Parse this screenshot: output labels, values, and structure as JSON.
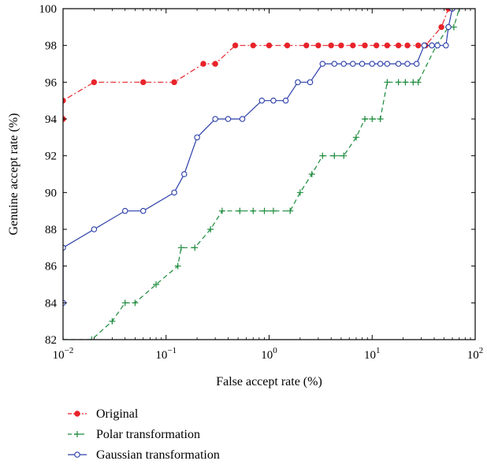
{
  "chart_data": {
    "type": "line",
    "title": "",
    "xlabel": "False accept rate (%)",
    "ylabel": "Genuine accept rate (%)",
    "xscale": "log",
    "xlim": [
      0.01,
      100
    ],
    "ylim": [
      82,
      100
    ],
    "x_ticks": [
      {
        "value": 0.01,
        "base": "10",
        "exp": "−2"
      },
      {
        "value": 0.1,
        "base": "10",
        "exp": "−1"
      },
      {
        "value": 1,
        "base": "10",
        "exp": "0"
      },
      {
        "value": 10,
        "base": "10",
        "exp": "1"
      },
      {
        "value": 100,
        "base": "10",
        "exp": "2"
      }
    ],
    "y_ticks": [
      82,
      84,
      86,
      88,
      90,
      92,
      94,
      96,
      98,
      100
    ],
    "grid": false,
    "legend_position": "below plot, left",
    "series": [
      {
        "name": "Original",
        "color": "#e8232a",
        "line_style": "dash-dot",
        "marker": "filled-circle",
        "x": [
          0.01,
          0.01,
          0.02,
          0.06,
          0.12,
          0.23,
          0.3,
          0.47,
          0.7,
          1.0,
          1.5,
          2.3,
          3.0,
          4.0,
          5.0,
          6.5,
          8.5,
          11.0,
          14.0,
          18.0,
          22.0,
          28.0,
          33.0,
          47.0,
          55.0
        ],
        "y": [
          94,
          95,
          96,
          96,
          96,
          97,
          97,
          98,
          98,
          98,
          98,
          98,
          98,
          98,
          98,
          98,
          98,
          98,
          98,
          98,
          98,
          98,
          98,
          99,
          100
        ]
      },
      {
        "name": "Polar transformation",
        "color": "#1a8a3a",
        "line_style": "dashed",
        "marker": "plus",
        "x": [
          0.01,
          0.019,
          0.03,
          0.04,
          0.05,
          0.08,
          0.13,
          0.14,
          0.19,
          0.27,
          0.35,
          0.52,
          0.7,
          0.9,
          1.1,
          1.6,
          2.0,
          2.6,
          3.3,
          4.3,
          5.3,
          7.0,
          8.5,
          10.0,
          12.0,
          14.0,
          18.0,
          21.0,
          25.0,
          28.0,
          42.0,
          55.0,
          62.0,
          70.0
        ],
        "y": [
          82,
          82,
          83,
          84,
          84,
          85,
          86,
          87,
          87,
          88,
          89,
          89,
          89,
          89,
          89,
          89,
          90,
          91,
          92,
          92,
          92,
          93,
          94,
          94,
          94,
          96,
          96,
          96,
          96,
          96,
          98,
          99,
          99,
          100
        ]
      },
      {
        "name": "Gaussian transformation",
        "color": "#2b3ea8",
        "line_style": "solid",
        "marker": "open-circle",
        "x": [
          0.01,
          0.01,
          0.02,
          0.04,
          0.06,
          0.12,
          0.15,
          0.2,
          0.3,
          0.4,
          0.55,
          0.85,
          1.1,
          1.45,
          1.9,
          2.5,
          3.3,
          4.3,
          5.3,
          6.5,
          8.0,
          10.0,
          12.0,
          14.0,
          18.0,
          22.0,
          27.0,
          32.0,
          38.0,
          43.0,
          52.0,
          55.0,
          60.0
        ],
        "y": [
          84,
          87,
          88,
          89,
          89,
          90,
          91,
          93,
          94,
          94,
          94,
          95,
          95,
          95,
          96,
          96,
          97,
          97,
          97,
          97,
          97,
          97,
          97,
          97,
          97,
          97,
          97,
          98,
          98,
          98,
          98,
          99,
          100
        ]
      }
    ]
  }
}
